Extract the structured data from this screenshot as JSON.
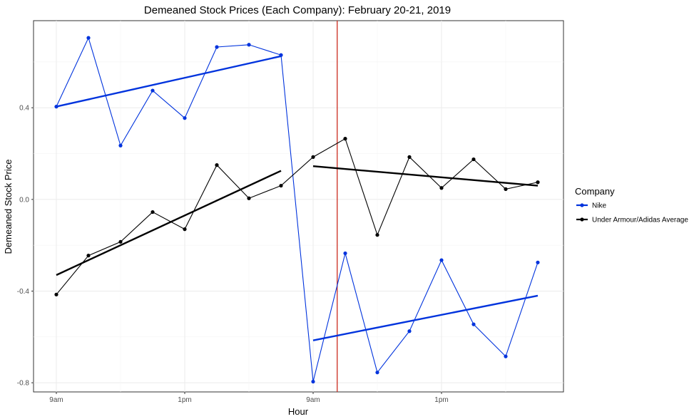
{
  "chart_data": {
    "type": "line",
    "title": "Demeaned Stock Prices (Each Company): February 20-21, 2019",
    "xlabel": "Hour",
    "ylabel": "Demeaned Stock Price",
    "x_tick_labels": [
      "9am",
      "1pm",
      "9am",
      "1pm"
    ],
    "y_ticks": [
      -0.8,
      -0.4,
      0.0,
      0.4
    ],
    "y_tick_labels": [
      "-0.8",
      "-0.4",
      "0.0",
      "0.4"
    ],
    "ylim": [
      -0.84,
      0.78
    ],
    "grid": true,
    "vertical_line": {
      "x": 8.75,
      "color": "#cc2a1e"
    },
    "legend": {
      "title": "Company",
      "position": "right",
      "entries": [
        {
          "label": "Nike",
          "color": "#0033dd"
        },
        {
          "label": "Under Armour/Adidas Average",
          "color": "#000000"
        }
      ]
    },
    "series": [
      {
        "name": "Nike",
        "color": "#0033dd",
        "x": [
          0,
          1,
          2,
          3,
          4,
          5,
          6,
          7,
          8,
          9,
          10,
          11,
          12,
          13,
          14,
          15
        ],
        "y": [
          0.405,
          0.705,
          0.235,
          0.475,
          0.355,
          0.665,
          0.675,
          0.63,
          -0.795,
          -0.235,
          -0.755,
          -0.575,
          -0.265,
          -0.545,
          -0.685,
          -0.275
        ],
        "fits": [
          {
            "x": [
              0,
              7
            ],
            "y": [
              0.405,
              0.625
            ]
          },
          {
            "x": [
              8,
              15
            ],
            "y": [
              -0.615,
              -0.42
            ]
          }
        ]
      },
      {
        "name": "Under Armour/Adidas Average",
        "color": "#000000",
        "x": [
          0,
          1,
          2,
          3,
          4,
          5,
          6,
          7,
          8,
          9,
          10,
          11,
          12,
          13,
          14,
          15
        ],
        "y": [
          -0.415,
          -0.245,
          -0.185,
          -0.055,
          -0.13,
          0.15,
          0.005,
          0.06,
          0.185,
          0.265,
          -0.155,
          0.185,
          0.05,
          0.175,
          0.045,
          0.075
        ],
        "fits": [
          {
            "x": [
              0,
              7
            ],
            "y": [
              -0.33,
              0.125
            ]
          },
          {
            "x": [
              8,
              15
            ],
            "y": [
              0.145,
              0.06
            ]
          }
        ]
      }
    ]
  }
}
